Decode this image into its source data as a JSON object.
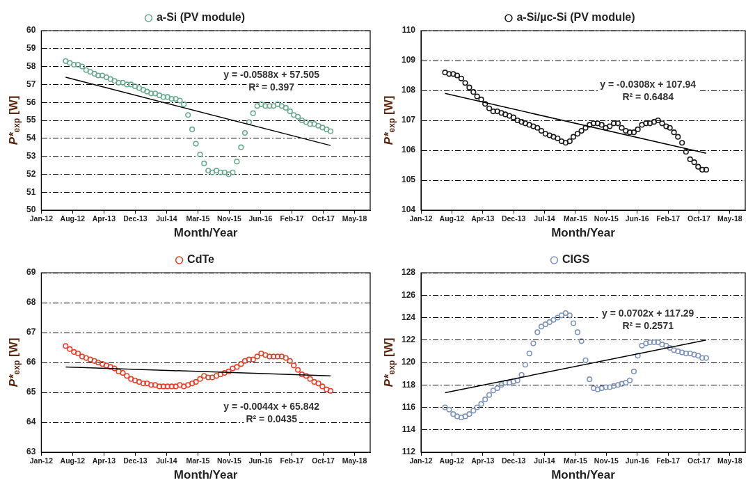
{
  "chart_data": [
    {
      "type": "scatter",
      "xlabel": "Month/Year",
      "ylabel": "P*$_{exp}$ [W]",
      "grid": "y",
      "legend": "top",
      "marker": "circle",
      "xlim": [
        "2012-01-01",
        "2018-09-23"
      ],
      "xticks": [
        {
          "value": "2012-01-01",
          "label": "Jan-12"
        },
        {
          "value": "2012-08-22",
          "label": "Aug-12"
        },
        {
          "value": "2013-04-13",
          "label": "Apr-13"
        },
        {
          "value": "2013-12-03",
          "label": "Dec-13"
        },
        {
          "value": "2014-07-25",
          "label": "Jul-14"
        },
        {
          "value": "2015-03-16",
          "label": "Mar-15"
        },
        {
          "value": "2015-11-05",
          "label": "Nov-15"
        },
        {
          "value": "2016-06-26",
          "label": "Jun-16"
        },
        {
          "value": "2017-02-15",
          "label": "Feb-17"
        },
        {
          "value": "2017-10-07",
          "label": "Oct-17"
        },
        {
          "value": "2018-05-29",
          "label": "May-18"
        }
      ],
      "ylim": [
        50,
        60
      ],
      "yticks": [
        50,
        51,
        52,
        53,
        54,
        55,
        56,
        57,
        58,
        59,
        60
      ],
      "x": [
        "2012-07",
        "2012-08",
        "2012-09",
        "2012-10",
        "2012-11",
        "2012-12",
        "2013-01",
        "2013-02",
        "2013-03",
        "2013-04",
        "2013-05",
        "2013-06",
        "2013-07",
        "2013-08",
        "2013-09",
        "2013-10",
        "2013-11",
        "2013-12",
        "2014-01",
        "2014-02",
        "2014-03",
        "2014-04",
        "2014-05",
        "2014-06",
        "2014-07",
        "2014-08",
        "2014-09",
        "2014-10",
        "2014-11",
        "2014-12",
        "2015-01",
        "2015-02",
        "2015-03",
        "2015-04",
        "2015-05",
        "2015-06",
        "2015-07",
        "2015-08",
        "2015-09",
        "2015-10",
        "2015-11",
        "2015-12",
        "2016-01",
        "2016-02",
        "2016-03",
        "2016-04",
        "2016-05",
        "2016-06",
        "2016-07",
        "2016-08",
        "2016-09",
        "2016-10",
        "2016-11",
        "2016-12",
        "2017-01",
        "2017-02",
        "2017-03",
        "2017-04",
        "2017-05",
        "2017-06",
        "2017-07",
        "2017-08",
        "2017-09",
        "2017-10",
        "2017-11",
        "2017-12"
      ],
      "series": [
        {
          "name": "a-Si (PV module)",
          "color": "#6aaa8e",
          "values": [
            58.3,
            58.2,
            58.1,
            58.1,
            58.0,
            57.8,
            57.7,
            57.6,
            57.5,
            57.5,
            57.4,
            57.3,
            57.2,
            57.1,
            57.1,
            57.0,
            57.0,
            56.9,
            56.8,
            56.7,
            56.6,
            56.5,
            56.5,
            56.4,
            56.3,
            56.3,
            56.2,
            56.2,
            56.1,
            55.9,
            55.3,
            54.5,
            53.7,
            53.1,
            52.6,
            52.2,
            52.1,
            52.2,
            52.1,
            52.1,
            52.0,
            52.1,
            52.7,
            53.5,
            54.3,
            54.9,
            55.4,
            55.8,
            55.9,
            55.8,
            55.8,
            55.8,
            55.9,
            55.8,
            55.7,
            55.5,
            55.3,
            55.2,
            55.0,
            54.9,
            54.8,
            54.8,
            54.7,
            54.6,
            54.5,
            54.4
          ]
        },
        {
          "type": "line",
          "marker": "none",
          "color": "#000000",
          "x": [
            "2012-07",
            "2017-12"
          ],
          "values": [
            57.4,
            53.6
          ]
        }
      ],
      "annotations": [
        "y = -0.0588x + 57.505",
        "R² = 0.397"
      ]
    },
    {
      "type": "scatter",
      "xlabel": "Month/Year",
      "ylabel": "P*$_{exp}$ [W]",
      "grid": "y",
      "legend": "top",
      "marker": "circle",
      "xlim": [
        "2012-01-01",
        "2018-09-23"
      ],
      "xticks": [
        {
          "value": "2012-01-01",
          "label": "Jan-12"
        },
        {
          "value": "2012-08-22",
          "label": "Aug-12"
        },
        {
          "value": "2013-04-13",
          "label": "Apr-13"
        },
        {
          "value": "2013-12-03",
          "label": "Dec-13"
        },
        {
          "value": "2014-07-25",
          "label": "Jul-14"
        },
        {
          "value": "2015-03-16",
          "label": "Mar-15"
        },
        {
          "value": "2015-11-05",
          "label": "Nov-15"
        },
        {
          "value": "2016-06-26",
          "label": "Jun-16"
        },
        {
          "value": "2017-02-15",
          "label": "Feb-17"
        },
        {
          "value": "2017-10-07",
          "label": "Oct-17"
        },
        {
          "value": "2018-05-29",
          "label": "May-18"
        }
      ],
      "ylim": [
        104,
        110
      ],
      "yticks": [
        104,
        105,
        106,
        107,
        108,
        109,
        110
      ],
      "x": [
        "2012-07",
        "2012-08",
        "2012-09",
        "2012-10",
        "2012-11",
        "2012-12",
        "2013-01",
        "2013-02",
        "2013-03",
        "2013-04",
        "2013-05",
        "2013-06",
        "2013-07",
        "2013-08",
        "2013-09",
        "2013-10",
        "2013-11",
        "2013-12",
        "2014-01",
        "2014-02",
        "2014-03",
        "2014-04",
        "2014-05",
        "2014-06",
        "2014-07",
        "2014-08",
        "2014-09",
        "2014-10",
        "2014-11",
        "2014-12",
        "2015-01",
        "2015-02",
        "2015-03",
        "2015-04",
        "2015-05",
        "2015-06",
        "2015-07",
        "2015-08",
        "2015-09",
        "2015-10",
        "2015-11",
        "2015-12",
        "2016-01",
        "2016-02",
        "2016-03",
        "2016-04",
        "2016-05",
        "2016-06",
        "2016-07",
        "2016-08",
        "2016-09",
        "2016-10",
        "2016-11",
        "2016-12",
        "2017-01",
        "2017-02",
        "2017-03",
        "2017-04",
        "2017-05",
        "2017-06",
        "2017-07",
        "2017-08",
        "2017-09",
        "2017-10",
        "2017-11",
        "2017-12"
      ],
      "series": [
        {
          "name": "a-Si/µc-Si (PV module)",
          "color": "#1a1a1a",
          "values": [
            108.6,
            108.55,
            108.55,
            108.5,
            108.4,
            108.25,
            108.1,
            107.95,
            107.8,
            107.7,
            107.55,
            107.4,
            107.3,
            107.3,
            107.25,
            107.2,
            107.15,
            107.1,
            107.0,
            106.95,
            106.9,
            106.85,
            106.8,
            106.75,
            106.65,
            106.55,
            106.5,
            106.45,
            106.4,
            106.3,
            106.25,
            106.3,
            106.45,
            106.55,
            106.65,
            106.75,
            106.85,
            106.9,
            106.9,
            106.85,
            106.75,
            106.8,
            106.9,
            106.9,
            106.75,
            106.65,
            106.6,
            106.6,
            106.7,
            106.85,
            106.9,
            106.9,
            106.95,
            107.0,
            106.9,
            106.8,
            106.75,
            106.6,
            106.45,
            106.25,
            105.95,
            105.7,
            105.6,
            105.45,
            105.35,
            105.35
          ]
        },
        {
          "type": "line",
          "marker": "none",
          "color": "#000000",
          "x": [
            "2012-07",
            "2017-12"
          ],
          "values": [
            107.9,
            105.9
          ]
        }
      ],
      "annotations": [
        "y = -0.0308x + 107.94",
        "R² = 0.6484"
      ]
    },
    {
      "type": "scatter",
      "xlabel": "Month/Year",
      "ylabel": "P*$_{exp}$ [W]",
      "grid": "y",
      "legend": "top",
      "marker": "circle",
      "xlim": [
        "2012-01-01",
        "2018-09-23"
      ],
      "xticks": [
        {
          "value": "2012-01-01",
          "label": "Jan-12"
        },
        {
          "value": "2012-08-22",
          "label": "Aug-12"
        },
        {
          "value": "2013-04-13",
          "label": "Apr-13"
        },
        {
          "value": "2013-12-03",
          "label": "Dec-13"
        },
        {
          "value": "2014-07-25",
          "label": "Jul-14"
        },
        {
          "value": "2015-03-16",
          "label": "Mar-15"
        },
        {
          "value": "2015-11-05",
          "label": "Nov-15"
        },
        {
          "value": "2016-06-26",
          "label": "Jun-16"
        },
        {
          "value": "2017-02-15",
          "label": "Feb-17"
        },
        {
          "value": "2017-10-07",
          "label": "Oct-17"
        },
        {
          "value": "2018-05-29",
          "label": "May-18"
        }
      ],
      "ylim": [
        63,
        69
      ],
      "yticks": [
        63,
        64,
        65,
        66,
        67,
        68,
        69
      ],
      "x": [
        "2012-07",
        "2012-08",
        "2012-09",
        "2012-10",
        "2012-11",
        "2012-12",
        "2013-01",
        "2013-02",
        "2013-03",
        "2013-04",
        "2013-05",
        "2013-06",
        "2013-07",
        "2013-08",
        "2013-09",
        "2013-10",
        "2013-11",
        "2013-12",
        "2014-01",
        "2014-02",
        "2014-03",
        "2014-04",
        "2014-05",
        "2014-06",
        "2014-07",
        "2014-08",
        "2014-09",
        "2014-10",
        "2014-11",
        "2014-12",
        "2015-01",
        "2015-02",
        "2015-03",
        "2015-04",
        "2015-05",
        "2015-06",
        "2015-07",
        "2015-08",
        "2015-09",
        "2015-10",
        "2015-11",
        "2015-12",
        "2016-01",
        "2016-02",
        "2016-03",
        "2016-04",
        "2016-05",
        "2016-06",
        "2016-07",
        "2016-08",
        "2016-09",
        "2016-10",
        "2016-11",
        "2016-12",
        "2017-01",
        "2017-02",
        "2017-03",
        "2017-04",
        "2017-05",
        "2017-06",
        "2017-07",
        "2017-08",
        "2017-09",
        "2017-10",
        "2017-11",
        "2017-12"
      ],
      "series": [
        {
          "name": "CdTe",
          "color": "#e8402a",
          "values": [
            66.55,
            66.45,
            66.35,
            66.3,
            66.2,
            66.15,
            66.1,
            66.05,
            66.0,
            65.95,
            65.9,
            65.85,
            65.8,
            65.7,
            65.65,
            65.55,
            65.45,
            65.4,
            65.35,
            65.3,
            65.3,
            65.25,
            65.25,
            65.2,
            65.2,
            65.2,
            65.2,
            65.2,
            65.25,
            65.2,
            65.25,
            65.3,
            65.35,
            65.45,
            65.55,
            65.5,
            65.5,
            65.55,
            65.6,
            65.65,
            65.7,
            65.8,
            65.85,
            65.95,
            66.05,
            66.1,
            66.1,
            66.2,
            66.3,
            66.25,
            66.2,
            66.2,
            66.2,
            66.2,
            66.15,
            66.05,
            65.9,
            65.75,
            65.6,
            65.55,
            65.45,
            65.35,
            65.3,
            65.2,
            65.1,
            65.05
          ]
        },
        {
          "type": "line",
          "marker": "none",
          "color": "#000000",
          "x": [
            "2012-07",
            "2017-12"
          ],
          "values": [
            65.85,
            65.55
          ]
        }
      ],
      "annotations": [
        "y = -0.0044x + 65.842",
        "R² = 0.0435"
      ]
    },
    {
      "type": "scatter",
      "xlabel": "Month/Year",
      "ylabel": "P*$_{exp}$ [W]",
      "grid": "y",
      "legend": "top",
      "marker": "circle",
      "xlim": [
        "2012-01-01",
        "2018-09-23"
      ],
      "xticks": [
        {
          "value": "2012-01-01",
          "label": "Jan-12"
        },
        {
          "value": "2012-08-22",
          "label": "Aug-12"
        },
        {
          "value": "2013-04-13",
          "label": "Apr-13"
        },
        {
          "value": "2013-12-03",
          "label": "Dec-13"
        },
        {
          "value": "2014-07-25",
          "label": "Jul-14"
        },
        {
          "value": "2015-03-16",
          "label": "Mar-15"
        },
        {
          "value": "2015-11-05",
          "label": "Nov-15"
        },
        {
          "value": "2016-06-26",
          "label": "Jun-16"
        },
        {
          "value": "2017-02-15",
          "label": "Feb-17"
        },
        {
          "value": "2017-10-07",
          "label": "Oct-17"
        },
        {
          "value": "2018-05-29",
          "label": "May-18"
        }
      ],
      "ylim": [
        112,
        128
      ],
      "yticks": [
        112,
        114,
        116,
        118,
        120,
        122,
        124,
        126,
        128
      ],
      "x": [
        "2012-07",
        "2012-08",
        "2012-09",
        "2012-10",
        "2012-11",
        "2012-12",
        "2013-01",
        "2013-02",
        "2013-03",
        "2013-04",
        "2013-05",
        "2013-06",
        "2013-07",
        "2013-08",
        "2013-09",
        "2013-10",
        "2013-11",
        "2013-12",
        "2014-01",
        "2014-02",
        "2014-03",
        "2014-04",
        "2014-05",
        "2014-06",
        "2014-07",
        "2014-08",
        "2014-09",
        "2014-10",
        "2014-11",
        "2014-12",
        "2015-01",
        "2015-02",
        "2015-03",
        "2015-04",
        "2015-05",
        "2015-06",
        "2015-07",
        "2015-08",
        "2015-09",
        "2015-10",
        "2015-11",
        "2015-12",
        "2016-01",
        "2016-02",
        "2016-03",
        "2016-04",
        "2016-05",
        "2016-06",
        "2016-07",
        "2016-08",
        "2016-09",
        "2016-10",
        "2016-11",
        "2016-12",
        "2017-01",
        "2017-02",
        "2017-03",
        "2017-04",
        "2017-05",
        "2017-06",
        "2017-07",
        "2017-08",
        "2017-09",
        "2017-10",
        "2017-11",
        "2017-12"
      ],
      "series": [
        {
          "name": "CIGS",
          "color": "#8096b8",
          "values": [
            116.0,
            115.8,
            115.4,
            115.2,
            115.1,
            115.2,
            115.4,
            115.7,
            116.0,
            116.3,
            116.7,
            117.1,
            117.5,
            117.7,
            118.0,
            118.2,
            118.2,
            118.3,
            118.4,
            118.9,
            119.8,
            120.8,
            121.7,
            122.7,
            123.2,
            123.4,
            123.6,
            123.8,
            124.0,
            124.2,
            124.4,
            124.2,
            123.5,
            122.7,
            121.9,
            120.2,
            118.5,
            117.7,
            117.6,
            117.7,
            117.8,
            117.8,
            117.9,
            118.0,
            118.1,
            118.2,
            118.4,
            119.2,
            120.6,
            121.5,
            121.7,
            121.8,
            121.8,
            121.8,
            121.6,
            121.5,
            121.3,
            121.1,
            121.0,
            120.9,
            120.8,
            120.8,
            120.7,
            120.6,
            120.4,
            120.4
          ]
        },
        {
          "type": "line",
          "marker": "none",
          "color": "#000000",
          "x": [
            "2012-07",
            "2017-12"
          ],
          "values": [
            117.3,
            122.0
          ]
        }
      ],
      "annotations": [
        "y = 0.0702x + 117.29",
        "R² = 0.2571"
      ]
    }
  ]
}
